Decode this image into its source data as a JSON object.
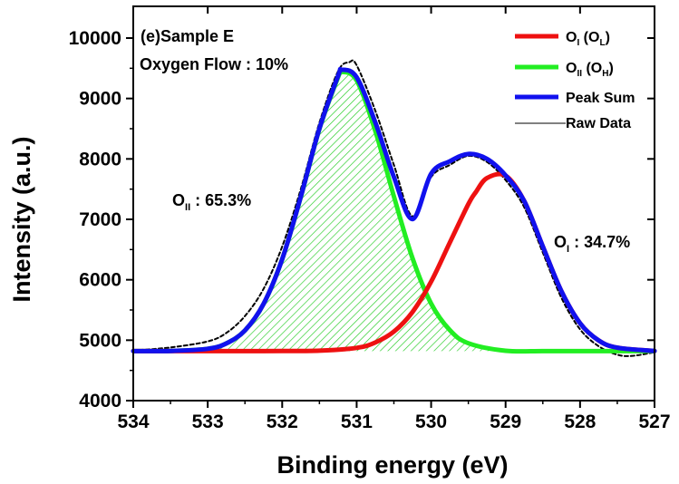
{
  "chart_data": {
    "type": "line",
    "xlabel": "Binding energy (eV)",
    "ylabel": "Intensity (a.u.)",
    "xlim": [
      534,
      527
    ],
    "ylim": [
      4000,
      10000
    ],
    "x_reversed": true,
    "x_ticks": [
      "534",
      "533",
      "532",
      "531",
      "530",
      "529",
      "528",
      "527"
    ],
    "y_ticks": [
      "4000",
      "5000",
      "6000",
      "7000",
      "8000",
      "9000",
      "10000"
    ],
    "grid": false,
    "legend_position": "top-right",
    "annotations": {
      "sample": "(e)Sample E",
      "flow": "Oxygen Flow : 10%",
      "oii_base": "O",
      "oii_sub": "II",
      "oii_value": " : 65.3%",
      "oi_base": "O",
      "oi_sub": "I",
      "oi_value": " : 34.7%"
    },
    "legend": [
      {
        "base": "O",
        "sub": "I",
        "paren_base": "O",
        "paren_sub": "L",
        "color": "#ee1111"
      },
      {
        "base": "O",
        "sub": "II",
        "paren_base": "O",
        "paren_sub": "H",
        "color": "#22ee22"
      },
      {
        "text": "Peak Sum",
        "color": "#1111ee"
      },
      {
        "text": "Raw Data",
        "color": "#000000"
      }
    ],
    "baseline": 4820,
    "series": [
      {
        "name": "OI (OL)",
        "color": "#ee1111",
        "x": [
          534.0,
          533.5,
          533.0,
          532.5,
          532.0,
          531.5,
          531.0,
          530.75,
          530.5,
          530.25,
          530.0,
          529.75,
          529.5,
          529.4,
          529.25,
          529.0,
          528.75,
          528.5,
          528.25,
          528.0,
          527.75,
          527.5,
          527.0
        ],
        "y": [
          4820,
          4820,
          4820,
          4820,
          4821,
          4827,
          4873,
          4962,
          5142,
          5467,
          5969,
          6613,
          7252,
          7450,
          7683,
          7723,
          7303,
          6551,
          5809,
          5281,
          4996,
          4876,
          4822
        ]
      },
      {
        "name": "OII (OH)",
        "color": "#22ee22",
        "fill_hatch": true,
        "x": [
          534.0,
          533.5,
          533.0,
          532.75,
          532.5,
          532.25,
          532.0,
          531.75,
          531.5,
          531.25,
          531.2,
          531.0,
          530.75,
          530.5,
          530.25,
          530.0,
          529.75,
          529.5,
          529.0,
          528.5,
          528.0,
          527.0
        ],
        "y": [
          4820,
          4822,
          4858,
          4947,
          5161,
          5599,
          6341,
          7370,
          8496,
          9350,
          9440,
          9298,
          8464,
          7379,
          6357,
          5606,
          5168,
          4950,
          4825,
          4820,
          4820,
          4820
        ]
      },
      {
        "name": "Peak Sum",
        "color": "#1111ee",
        "x": [
          534.0,
          533.5,
          533.0,
          532.75,
          532.5,
          532.25,
          532.0,
          531.75,
          531.5,
          531.25,
          531.2,
          531.0,
          530.75,
          530.5,
          530.25,
          530.0,
          529.75,
          529.5,
          529.25,
          529.0,
          528.75,
          528.5,
          528.25,
          528.0,
          527.75,
          527.5,
          527.0
        ],
        "y": [
          4820,
          4822,
          4858,
          4947,
          5162,
          5602,
          6342,
          7375,
          8503,
          9371,
          9475,
          9351,
          8606,
          7701,
          7004,
          7755,
          7961,
          8082,
          8000,
          7728,
          7303,
          6551,
          5809,
          5281,
          4996,
          4876,
          4822
        ]
      },
      {
        "name": "Raw Data",
        "color": "#000000",
        "dashed": true,
        "x": [
          534.0,
          533.5,
          533.0,
          532.75,
          532.5,
          532.25,
          532.0,
          531.75,
          531.5,
          531.25,
          531.1,
          531.0,
          530.75,
          530.5,
          530.25,
          530.0,
          529.75,
          529.5,
          529.25,
          529.0,
          528.75,
          528.5,
          528.25,
          528.0,
          527.75,
          527.5,
          527.3,
          527.0
        ],
        "y": [
          4830,
          4880,
          4980,
          5120,
          5400,
          5850,
          6550,
          7500,
          8600,
          9450,
          9600,
          9550,
          8800,
          7900,
          7050,
          7700,
          7900,
          8050,
          7950,
          7650,
          7200,
          6450,
          5700,
          5180,
          4900,
          4760,
          4740,
          4800
        ]
      }
    ]
  }
}
